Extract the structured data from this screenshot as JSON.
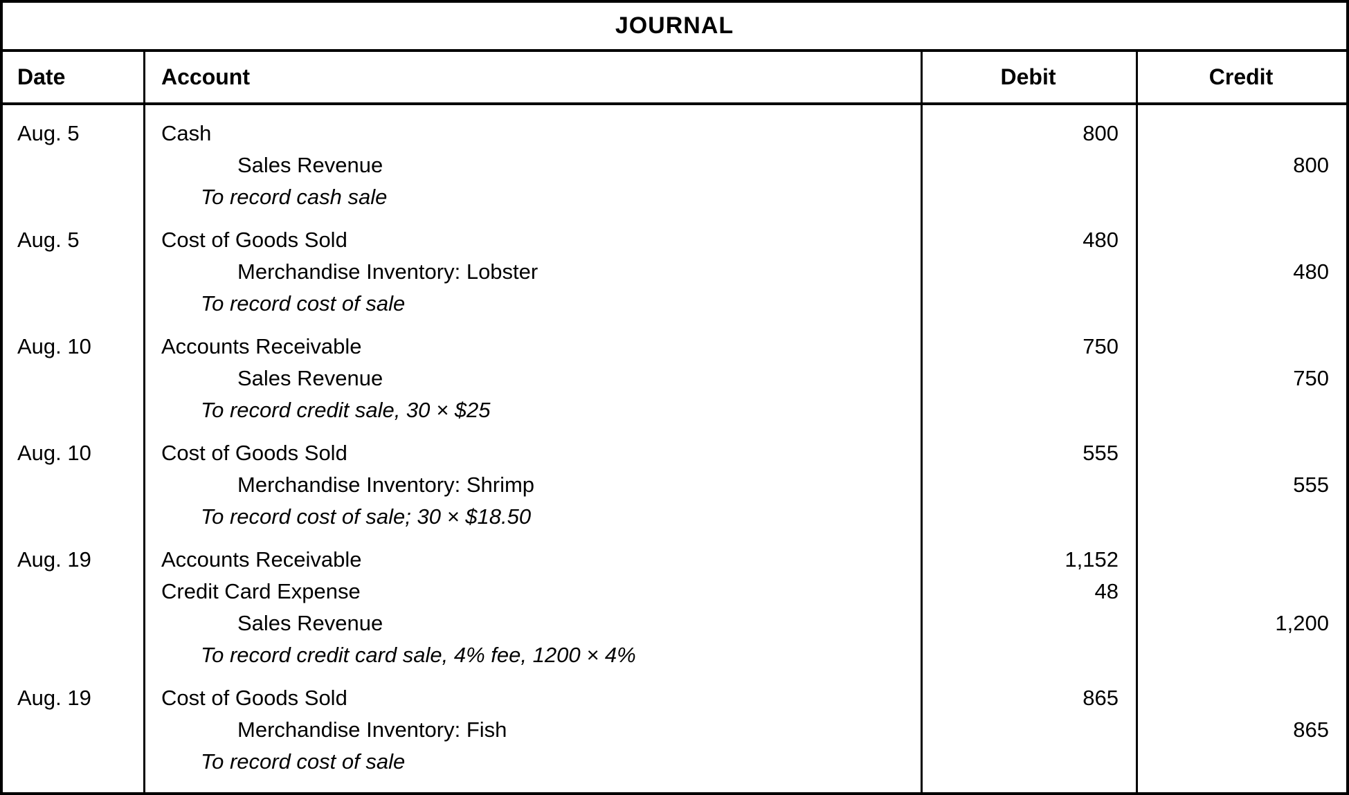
{
  "title": "JOURNAL",
  "columns": {
    "date": "Date",
    "account": "Account",
    "debit": "Debit",
    "credit": "Credit"
  },
  "colors": {
    "text": "#000000",
    "background": "#ffffff",
    "border": "#000000"
  },
  "entries": [
    {
      "date": "Aug. 5",
      "lines": [
        {
          "text": "Cash",
          "indent": "level1",
          "debit": "800",
          "credit": ""
        },
        {
          "text": "Sales Revenue",
          "indent": "level2",
          "debit": "",
          "credit": "800"
        },
        {
          "text": "To record cash sale",
          "indent": "desc",
          "debit": "",
          "credit": ""
        }
      ]
    },
    {
      "date": "Aug. 5",
      "lines": [
        {
          "text": "Cost of Goods Sold",
          "indent": "level1",
          "debit": "480",
          "credit": ""
        },
        {
          "text": "Merchandise Inventory: Lobster",
          "indent": "level2",
          "debit": "",
          "credit": "480"
        },
        {
          "text": "To record cost of sale",
          "indent": "desc",
          "debit": "",
          "credit": ""
        }
      ]
    },
    {
      "date": "Aug. 10",
      "lines": [
        {
          "text": "Accounts Receivable",
          "indent": "level1",
          "debit": "750",
          "credit": ""
        },
        {
          "text": "Sales Revenue",
          "indent": "level2",
          "debit": "",
          "credit": "750"
        },
        {
          "text": "To record credit sale, 30 × $25",
          "indent": "desc",
          "debit": "",
          "credit": ""
        }
      ]
    },
    {
      "date": "Aug. 10",
      "lines": [
        {
          "text": "Cost of Goods Sold",
          "indent": "level1",
          "debit": "555",
          "credit": ""
        },
        {
          "text": "Merchandise Inventory: Shrimp",
          "indent": "level2",
          "debit": "",
          "credit": "555"
        },
        {
          "text": "To record cost of sale; 30 × $18.50",
          "indent": "desc",
          "debit": "",
          "credit": ""
        }
      ]
    },
    {
      "date": "Aug. 19",
      "lines": [
        {
          "text": "Accounts Receivable",
          "indent": "level1",
          "debit": "1,152",
          "credit": ""
        },
        {
          "text": "Credit Card Expense",
          "indent": "level1",
          "debit": "48",
          "credit": ""
        },
        {
          "text": "Sales Revenue",
          "indent": "level2",
          "debit": "",
          "credit": "1,200"
        },
        {
          "text": "To record credit card sale, 4% fee, 1200 × 4%",
          "indent": "desc",
          "debit": "",
          "credit": ""
        }
      ]
    },
    {
      "date": "Aug. 19",
      "lines": [
        {
          "text": "Cost of Goods Sold",
          "indent": "level1",
          "debit": "865",
          "credit": ""
        },
        {
          "text": "Merchandise Inventory: Fish",
          "indent": "level2",
          "debit": "",
          "credit": "865"
        },
        {
          "text": "To record cost of sale",
          "indent": "desc",
          "debit": "",
          "credit": ""
        }
      ]
    }
  ]
}
